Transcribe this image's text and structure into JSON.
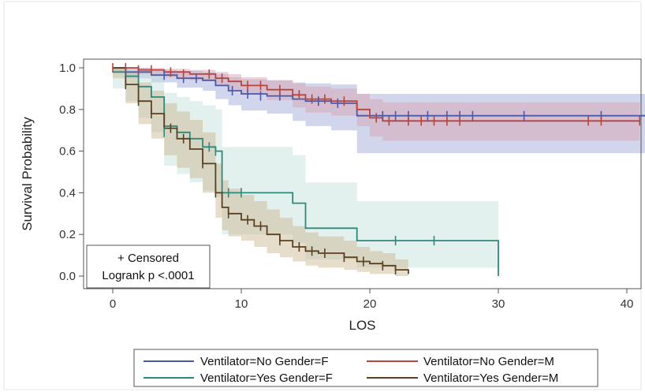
{
  "chart_data": {
    "type": "line",
    "subtype": "kaplan-meier-step",
    "xlabel": "LOS",
    "ylabel": "Survival Probability",
    "xlim": [
      -2,
      44
    ],
    "ylim": [
      -0.05,
      1.05
    ],
    "xticks": [
      0,
      10,
      20,
      30,
      40
    ],
    "yticks": [
      0.0,
      0.2,
      0.4,
      0.6,
      0.8,
      1.0
    ],
    "x_tick_labels": [
      "0",
      "10",
      "20",
      "30",
      "40"
    ],
    "y_tick_labels": [
      "0.0",
      "0.2",
      "0.4",
      "0.6",
      "0.8",
      "1.0"
    ],
    "grid": false,
    "inset": {
      "line1": "+ Censored",
      "line2": "Logrank p <.0001",
      "position": "bottom-left"
    },
    "legend_position": "bottom",
    "series": [
      {
        "name": "Ventilator=No Gender=F",
        "color": "#4a5aa8",
        "band_color": "#9aa4d8",
        "steps": [
          [
            0,
            1.0
          ],
          [
            1,
            0.98
          ],
          [
            3,
            0.965
          ],
          [
            5,
            0.95
          ],
          [
            7,
            0.94
          ],
          [
            8,
            0.915
          ],
          [
            9,
            0.89
          ],
          [
            10,
            0.875
          ],
          [
            12,
            0.865
          ],
          [
            14,
            0.85
          ],
          [
            15,
            0.84
          ],
          [
            17,
            0.83
          ],
          [
            19,
            0.77
          ],
          [
            43,
            0.77
          ]
        ],
        "lower": [
          [
            0,
            0.98
          ],
          [
            1,
            0.95
          ],
          [
            3,
            0.93
          ],
          [
            5,
            0.905
          ],
          [
            7,
            0.89
          ],
          [
            8,
            0.85
          ],
          [
            9,
            0.82
          ],
          [
            10,
            0.795
          ],
          [
            12,
            0.78
          ],
          [
            14,
            0.745
          ],
          [
            15,
            0.72
          ],
          [
            17,
            0.7
          ],
          [
            19,
            0.59
          ],
          [
            43,
            0.59
          ]
        ],
        "upper": [
          [
            0,
            1.0
          ],
          [
            1,
            1.0
          ],
          [
            3,
            0.99
          ],
          [
            5,
            0.985
          ],
          [
            7,
            0.98
          ],
          [
            8,
            0.97
          ],
          [
            9,
            0.955
          ],
          [
            10,
            0.945
          ],
          [
            12,
            0.94
          ],
          [
            14,
            0.93
          ],
          [
            15,
            0.925
          ],
          [
            17,
            0.92
          ],
          [
            19,
            0.875
          ],
          [
            43,
            0.875
          ]
        ],
        "censored": [
          [
            1,
            0.98
          ],
          [
            2,
            0.98
          ],
          [
            4,
            0.965
          ],
          [
            5.5,
            0.95
          ],
          [
            6.5,
            0.95
          ],
          [
            9.3,
            0.89
          ],
          [
            10.5,
            0.875
          ],
          [
            11.5,
            0.865
          ],
          [
            13,
            0.865
          ],
          [
            16,
            0.84
          ],
          [
            17.5,
            0.83
          ],
          [
            21,
            0.77
          ],
          [
            22,
            0.77
          ],
          [
            23,
            0.77
          ],
          [
            24.5,
            0.77
          ],
          [
            26,
            0.77
          ],
          [
            27,
            0.77
          ],
          [
            28,
            0.77
          ],
          [
            32,
            0.77
          ],
          [
            38,
            0.77
          ],
          [
            42,
            0.77
          ],
          [
            43,
            0.77
          ]
        ]
      },
      {
        "name": "Ventilator=No Gender=M",
        "color": "#b8453b",
        "band_color": "#d8a0a8",
        "steps": [
          [
            0,
            1.0
          ],
          [
            2,
            0.99
          ],
          [
            4,
            0.98
          ],
          [
            6,
            0.97
          ],
          [
            8,
            0.95
          ],
          [
            9,
            0.935
          ],
          [
            10,
            0.915
          ],
          [
            12,
            0.895
          ],
          [
            14,
            0.87
          ],
          [
            15,
            0.85
          ],
          [
            17,
            0.84
          ],
          [
            19,
            0.8
          ],
          [
            20,
            0.76
          ],
          [
            21,
            0.745
          ],
          [
            41,
            0.745
          ]
        ],
        "lower": [
          [
            0,
            0.985
          ],
          [
            2,
            0.97
          ],
          [
            4,
            0.955
          ],
          [
            6,
            0.94
          ],
          [
            8,
            0.915
          ],
          [
            9,
            0.895
          ],
          [
            10,
            0.87
          ],
          [
            12,
            0.845
          ],
          [
            14,
            0.81
          ],
          [
            15,
            0.785
          ],
          [
            17,
            0.77
          ],
          [
            19,
            0.72
          ],
          [
            20,
            0.67
          ],
          [
            21,
            0.65
          ],
          [
            41,
            0.65
          ]
        ],
        "upper": [
          [
            0,
            1.0
          ],
          [
            2,
            1.0
          ],
          [
            4,
            0.995
          ],
          [
            6,
            0.99
          ],
          [
            8,
            0.98
          ],
          [
            9,
            0.97
          ],
          [
            10,
            0.955
          ],
          [
            12,
            0.94
          ],
          [
            14,
            0.925
          ],
          [
            15,
            0.91
          ],
          [
            17,
            0.9
          ],
          [
            19,
            0.875
          ],
          [
            20,
            0.85
          ],
          [
            21,
            0.835
          ],
          [
            41,
            0.835
          ]
        ],
        "censored": [
          [
            0,
            1.0
          ],
          [
            1,
            1.0
          ],
          [
            2,
            0.99
          ],
          [
            3,
            0.99
          ],
          [
            4.5,
            0.98
          ],
          [
            5.5,
            0.97
          ],
          [
            7.5,
            0.97
          ],
          [
            8.5,
            0.95
          ],
          [
            10.5,
            0.915
          ],
          [
            11.5,
            0.915
          ],
          [
            13,
            0.895
          ],
          [
            14.5,
            0.87
          ],
          [
            15.5,
            0.85
          ],
          [
            16.5,
            0.85
          ],
          [
            18,
            0.84
          ],
          [
            20.5,
            0.76
          ],
          [
            21.5,
            0.745
          ],
          [
            23,
            0.745
          ],
          [
            24,
            0.745
          ],
          [
            25,
            0.745
          ],
          [
            26,
            0.745
          ],
          [
            27,
            0.745
          ],
          [
            37,
            0.745
          ],
          [
            38,
            0.745
          ],
          [
            41,
            0.745
          ]
        ]
      },
      {
        "name": "Ventilator=Yes Gender=F",
        "color": "#2a8a7c",
        "band_color": "#bfe0d6",
        "steps": [
          [
            0,
            0.98
          ],
          [
            1,
            0.96
          ],
          [
            2,
            0.91
          ],
          [
            3,
            0.86
          ],
          [
            4,
            0.72
          ],
          [
            5,
            0.69
          ],
          [
            6,
            0.66
          ],
          [
            7,
            0.62
          ],
          [
            8,
            0.6
          ],
          [
            8.5,
            0.4
          ],
          [
            14,
            0.35
          ],
          [
            15,
            0.23
          ],
          [
            19,
            0.17
          ],
          [
            30,
            0.17
          ],
          [
            30,
            0.0
          ]
        ],
        "lower": [
          [
            0,
            0.9
          ],
          [
            1,
            0.84
          ],
          [
            2,
            0.76
          ],
          [
            3,
            0.69
          ],
          [
            4,
            0.53
          ],
          [
            5,
            0.49
          ],
          [
            6,
            0.45
          ],
          [
            7,
            0.41
          ],
          [
            8,
            0.38
          ],
          [
            8.5,
            0.2
          ],
          [
            14,
            0.16
          ],
          [
            15,
            0.08
          ],
          [
            19,
            0.04
          ],
          [
            30,
            0.04
          ]
        ],
        "upper": [
          [
            0,
            1.0
          ],
          [
            1,
            1.0
          ],
          [
            2,
            0.99
          ],
          [
            3,
            0.97
          ],
          [
            4,
            0.88
          ],
          [
            5,
            0.86
          ],
          [
            6,
            0.84
          ],
          [
            7,
            0.82
          ],
          [
            8,
            0.8
          ],
          [
            8.5,
            0.62
          ],
          [
            14,
            0.58
          ],
          [
            15,
            0.45
          ],
          [
            19,
            0.36
          ],
          [
            30,
            0.36
          ]
        ],
        "censored": [
          [
            4,
            0.69
          ],
          [
            7.5,
            0.62
          ],
          [
            8,
            0.6
          ],
          [
            9,
            0.4
          ],
          [
            10,
            0.4
          ],
          [
            22,
            0.17
          ],
          [
            25,
            0.17
          ]
        ]
      },
      {
        "name": "Ventilator=Yes Gender=M",
        "color": "#5a4022",
        "band_color": "#cab48c",
        "steps": [
          [
            0,
            1.0
          ],
          [
            1,
            0.92
          ],
          [
            2,
            0.84
          ],
          [
            3,
            0.78
          ],
          [
            4,
            0.71
          ],
          [
            5,
            0.66
          ],
          [
            6,
            0.61
          ],
          [
            7,
            0.54
          ],
          [
            8,
            0.4
          ],
          [
            8.5,
            0.33
          ],
          [
            9,
            0.3
          ],
          [
            10,
            0.27
          ],
          [
            11,
            0.24
          ],
          [
            12,
            0.2
          ],
          [
            13,
            0.17
          ],
          [
            14,
            0.14
          ],
          [
            15,
            0.12
          ],
          [
            16,
            0.11
          ],
          [
            18,
            0.09
          ],
          [
            19,
            0.07
          ],
          [
            20,
            0.06
          ],
          [
            21,
            0.05
          ],
          [
            22,
            0.03
          ],
          [
            23,
            0.01
          ]
        ],
        "lower": [
          [
            0,
            0.95
          ],
          [
            1,
            0.83
          ],
          [
            2,
            0.73
          ],
          [
            3,
            0.66
          ],
          [
            4,
            0.58
          ],
          [
            5,
            0.52
          ],
          [
            6,
            0.47
          ],
          [
            7,
            0.4
          ],
          [
            8,
            0.28
          ],
          [
            8.5,
            0.22
          ],
          [
            9,
            0.19
          ],
          [
            10,
            0.17
          ],
          [
            11,
            0.14
          ],
          [
            12,
            0.11
          ],
          [
            13,
            0.09
          ],
          [
            14,
            0.07
          ],
          [
            15,
            0.05
          ],
          [
            16,
            0.04
          ],
          [
            18,
            0.03
          ],
          [
            19,
            0.02
          ],
          [
            20,
            0.01
          ],
          [
            21,
            0.01
          ],
          [
            22,
            0.0
          ],
          [
            23,
            0.0
          ]
        ],
        "upper": [
          [
            0,
            1.0
          ],
          [
            1,
            0.98
          ],
          [
            2,
            0.93
          ],
          [
            3,
            0.89
          ],
          [
            4,
            0.83
          ],
          [
            5,
            0.79
          ],
          [
            6,
            0.75
          ],
          [
            7,
            0.69
          ],
          [
            8,
            0.54
          ],
          [
            8.5,
            0.46
          ],
          [
            9,
            0.42
          ],
          [
            10,
            0.39
          ],
          [
            11,
            0.36
          ],
          [
            12,
            0.32
          ],
          [
            13,
            0.28
          ],
          [
            14,
            0.24
          ],
          [
            15,
            0.21
          ],
          [
            16,
            0.19
          ],
          [
            18,
            0.17
          ],
          [
            19,
            0.14
          ],
          [
            20,
            0.12
          ],
          [
            21,
            0.11
          ],
          [
            22,
            0.08
          ],
          [
            23,
            0.06
          ]
        ],
        "censored": [
          [
            1,
            0.92
          ],
          [
            2,
            0.84
          ],
          [
            3,
            0.78
          ],
          [
            4.5,
            0.71
          ],
          [
            5.5,
            0.66
          ],
          [
            7,
            0.54
          ],
          [
            8,
            0.4
          ],
          [
            9,
            0.3
          ],
          [
            10.5,
            0.27
          ],
          [
            11.5,
            0.24
          ],
          [
            13,
            0.17
          ],
          [
            14.5,
            0.14
          ],
          [
            15.5,
            0.12
          ],
          [
            16.5,
            0.11
          ],
          [
            18,
            0.09
          ],
          [
            19.5,
            0.07
          ],
          [
            21,
            0.05
          ],
          [
            22,
            0.03
          ]
        ]
      }
    ]
  }
}
